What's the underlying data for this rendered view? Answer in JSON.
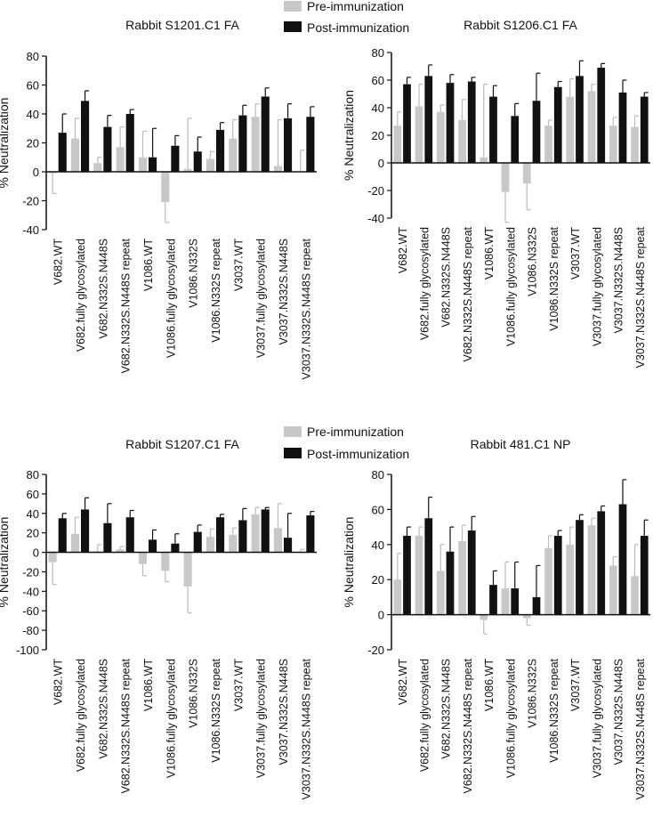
{
  "legend": {
    "pre_label": "Pre-immunization",
    "post_label": "Post-immunization",
    "pre_color": "#c8c8c8",
    "post_color": "#111111"
  },
  "chart_data": [
    {
      "type": "bar",
      "title": "Rabbit S1201.C1 FA",
      "ylabel": "% Neutralization",
      "xlabel": "",
      "ylim": [
        -40,
        80
      ],
      "yticks": [
        -40,
        -20,
        0,
        20,
        40,
        60,
        80
      ],
      "categories": [
        "V682.WT",
        "V682.fully glycosylated",
        "V682.N332S.N448S",
        "V682.N332S.N448S repeat",
        "V1086.WT",
        "V1086.fully glycosylated",
        "V1086.N332S",
        "V1086.N332S repeat",
        "V3037.WT",
        "V3037.fully glycosylated",
        "V3037.N332S.N448S",
        "V3037.N332S.N448S repeat"
      ],
      "series": [
        {
          "name": "Pre-immunization",
          "values": [
            -1,
            23,
            6,
            17,
            10,
            -21,
            2,
            9,
            23,
            38,
            4,
            0
          ],
          "errors": [
            14,
            14,
            4,
            14,
            18,
            14,
            35,
            5,
            13,
            9,
            32,
            15
          ]
        },
        {
          "name": "Post-immunization",
          "values": [
            27,
            49,
            31,
            40,
            10,
            18,
            14,
            29,
            39,
            52,
            37,
            38
          ],
          "errors": [
            13,
            7,
            8,
            3,
            20,
            7,
            10,
            5,
            7,
            6,
            10,
            7
          ]
        }
      ]
    },
    {
      "type": "bar",
      "title": "Rabbit S1206.C1 FA",
      "ylabel": "% Neutralization",
      "xlabel": "",
      "ylim": [
        -40,
        80
      ],
      "yticks": [
        -40,
        -20,
        0,
        20,
        40,
        60,
        80
      ],
      "categories": [
        "V682.WT",
        "V682.fully glycosylated",
        "V682.N332S.N448S",
        "V682.N332S.N448S repeat",
        "V1086.WT",
        "V1086.fully glycosylated",
        "V1086.N332S",
        "V1086.N332S repeat",
        "V3037.WT",
        "V3037.fully glycosylated",
        "V3037.N332S.N448S",
        "V3037.N332S.N448S repeat"
      ],
      "series": [
        {
          "name": "Pre-immunization",
          "values": [
            27,
            41,
            37,
            31,
            4,
            -21,
            -15,
            27,
            48,
            52,
            27,
            26
          ],
          "errors": [
            10,
            16,
            5,
            15,
            53,
            22,
            19,
            4,
            13,
            5,
            6,
            8
          ]
        },
        {
          "name": "Post-immunization",
          "values": [
            57,
            63,
            58,
            59,
            48,
            34,
            45,
            55,
            63,
            69,
            51,
            48
          ],
          "errors": [
            5,
            8,
            6,
            3,
            8,
            9,
            20,
            4,
            11,
            3,
            9,
            3
          ]
        }
      ]
    },
    {
      "type": "bar",
      "title": "Rabbit S1207.C1 FA",
      "ylabel": "% Neutralization",
      "xlabel": "",
      "ylim": [
        -100,
        80
      ],
      "yticks": [
        -100,
        -80,
        -60,
        -40,
        -20,
        0,
        20,
        40,
        60,
        80
      ],
      "categories": [
        "V682.WT",
        "V682.fully glycosylated",
        "V682.N332S.N448S",
        "V682.N332S.N448S repeat",
        "V1086.WT",
        "V1086.fully glycosylated",
        "V1086.N332S",
        "V1086.N332S repeat",
        "V3037.WT",
        "V3037.fully glycosylated",
        "V3037.N332S.N448S",
        "V3037.N332S.N448S repeat"
      ],
      "series": [
        {
          "name": "Pre-immunization",
          "values": [
            -10,
            19,
            1,
            3,
            -12,
            -19,
            -35,
            16,
            18,
            39,
            25,
            0
          ],
          "errors": [
            23,
            17,
            7,
            3,
            12,
            11,
            27,
            8,
            7,
            7,
            25,
            3
          ]
        },
        {
          "name": "Post-immunization",
          "values": [
            35,
            44,
            30,
            36,
            13,
            9,
            21,
            36,
            33,
            44,
            15,
            38
          ],
          "errors": [
            5,
            12,
            20,
            7,
            10,
            10,
            7,
            3,
            12,
            2,
            25,
            4
          ]
        }
      ]
    },
    {
      "type": "bar",
      "title": "Rabbit 481.C1 NP",
      "ylabel": "% Neutralization",
      "xlabel": "",
      "ylim": [
        -20,
        80
      ],
      "yticks": [
        -20,
        0,
        20,
        40,
        60,
        80
      ],
      "categories": [
        "V682.WT",
        "V682.fully glycosylated",
        "V682.N332S.N448S",
        "V682.N332S.N448S repeat",
        "V1086.WT",
        "V1086.fully glycosylated",
        "V1086.N332S",
        "V1086.N332S repeat",
        "V3037.WT",
        "V3037.fully glycosylated",
        "V3037.N332S.N448S",
        "V3037.N332S.N448S repeat"
      ],
      "series": [
        {
          "name": "Pre-immunization",
          "values": [
            20,
            45,
            25,
            42,
            -3,
            15,
            -2,
            38,
            40,
            51,
            28,
            22
          ],
          "errors": [
            15,
            5,
            15,
            9,
            8,
            15,
            4,
            7,
            10,
            4,
            5,
            18
          ]
        },
        {
          "name": "Post-immunization",
          "values": [
            45,
            55,
            36,
            48,
            17,
            15,
            10,
            45,
            54,
            59,
            63,
            45
          ],
          "errors": [
            5,
            12,
            14,
            8,
            8,
            15,
            18,
            3,
            3,
            3,
            14,
            9
          ]
        }
      ]
    }
  ]
}
